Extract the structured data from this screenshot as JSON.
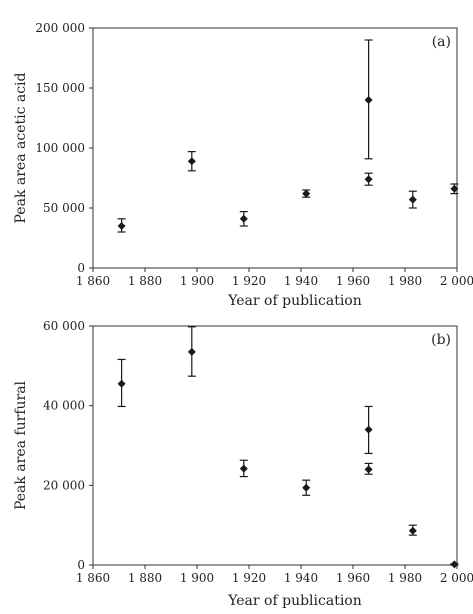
{
  "chart_data": [
    {
      "type": "scatter",
      "panel_label": "(a)",
      "xlabel": "Year of publication",
      "ylabel": "Peak area acetic acid",
      "xlim": [
        1860,
        2000
      ],
      "ylim": [
        0,
        200000
      ],
      "x_ticks": [
        1860,
        1880,
        1900,
        1920,
        1940,
        1960,
        1980,
        2000
      ],
      "x_tick_labels": [
        "1 860",
        "1 880",
        "1 900",
        "1 920",
        "1 940",
        "1 960",
        "1 980",
        "2 000"
      ],
      "y_ticks": [
        0,
        50000,
        100000,
        150000,
        200000
      ],
      "y_tick_labels": [
        "0",
        "50 000",
        "100 000",
        "150 000",
        "200 000"
      ],
      "grid": false,
      "legend": "none",
      "marker": "diamond",
      "color": "#1a1a1a",
      "points": [
        {
          "x": 1871,
          "y": 35000,
          "err_low": 30000,
          "err_high": 41000
        },
        {
          "x": 1898,
          "y": 89000,
          "err_low": 81000,
          "err_high": 97000
        },
        {
          "x": 1918,
          "y": 41000,
          "err_low": 35000,
          "err_high": 47000
        },
        {
          "x": 1942,
          "y": 62000,
          "err_low": 59000,
          "err_high": 65000
        },
        {
          "x": 1966,
          "y": 140000,
          "err_low": 91000,
          "err_high": 190000
        },
        {
          "x": 1966,
          "y": 74000,
          "err_low": 69000,
          "err_high": 79000
        },
        {
          "x": 1983,
          "y": 57000,
          "err_low": 50000,
          "err_high": 64000
        },
        {
          "x": 1999,
          "y": 66000,
          "err_low": 62000,
          "err_high": 70000
        }
      ]
    },
    {
      "type": "scatter",
      "panel_label": "(b)",
      "xlabel": "Year of publication",
      "ylabel": "Peak area furfural",
      "xlim": [
        1860,
        2000
      ],
      "ylim": [
        0,
        60000
      ],
      "x_ticks": [
        1860,
        1880,
        1900,
        1920,
        1940,
        1960,
        1980,
        2000
      ],
      "x_tick_labels": [
        "1 860",
        "1 880",
        "1 900",
        "1 920",
        "1 940",
        "1 960",
        "1 980",
        "2 000"
      ],
      "y_ticks": [
        0,
        20000,
        40000,
        60000
      ],
      "y_tick_labels": [
        "0",
        "20 000",
        "40 000",
        "60 000"
      ],
      "grid": false,
      "legend": "none",
      "marker": "diamond",
      "color": "#1a1a1a",
      "points": [
        {
          "x": 1871,
          "y": 45500,
          "err_low": 39800,
          "err_high": 51600
        },
        {
          "x": 1898,
          "y": 53500,
          "err_low": 47400,
          "err_high": 59800
        },
        {
          "x": 1918,
          "y": 24200,
          "err_low": 22200,
          "err_high": 26300
        },
        {
          "x": 1942,
          "y": 19400,
          "err_low": 17500,
          "err_high": 21300
        },
        {
          "x": 1966,
          "y": 34000,
          "err_low": 28000,
          "err_high": 39800
        },
        {
          "x": 1966,
          "y": 24000,
          "err_low": 22800,
          "err_high": 25500
        },
        {
          "x": 1983,
          "y": 8600,
          "err_low": 7500,
          "err_high": 10000
        },
        {
          "x": 1999,
          "y": 150,
          "err_low": 0,
          "err_high": 300
        }
      ]
    }
  ]
}
